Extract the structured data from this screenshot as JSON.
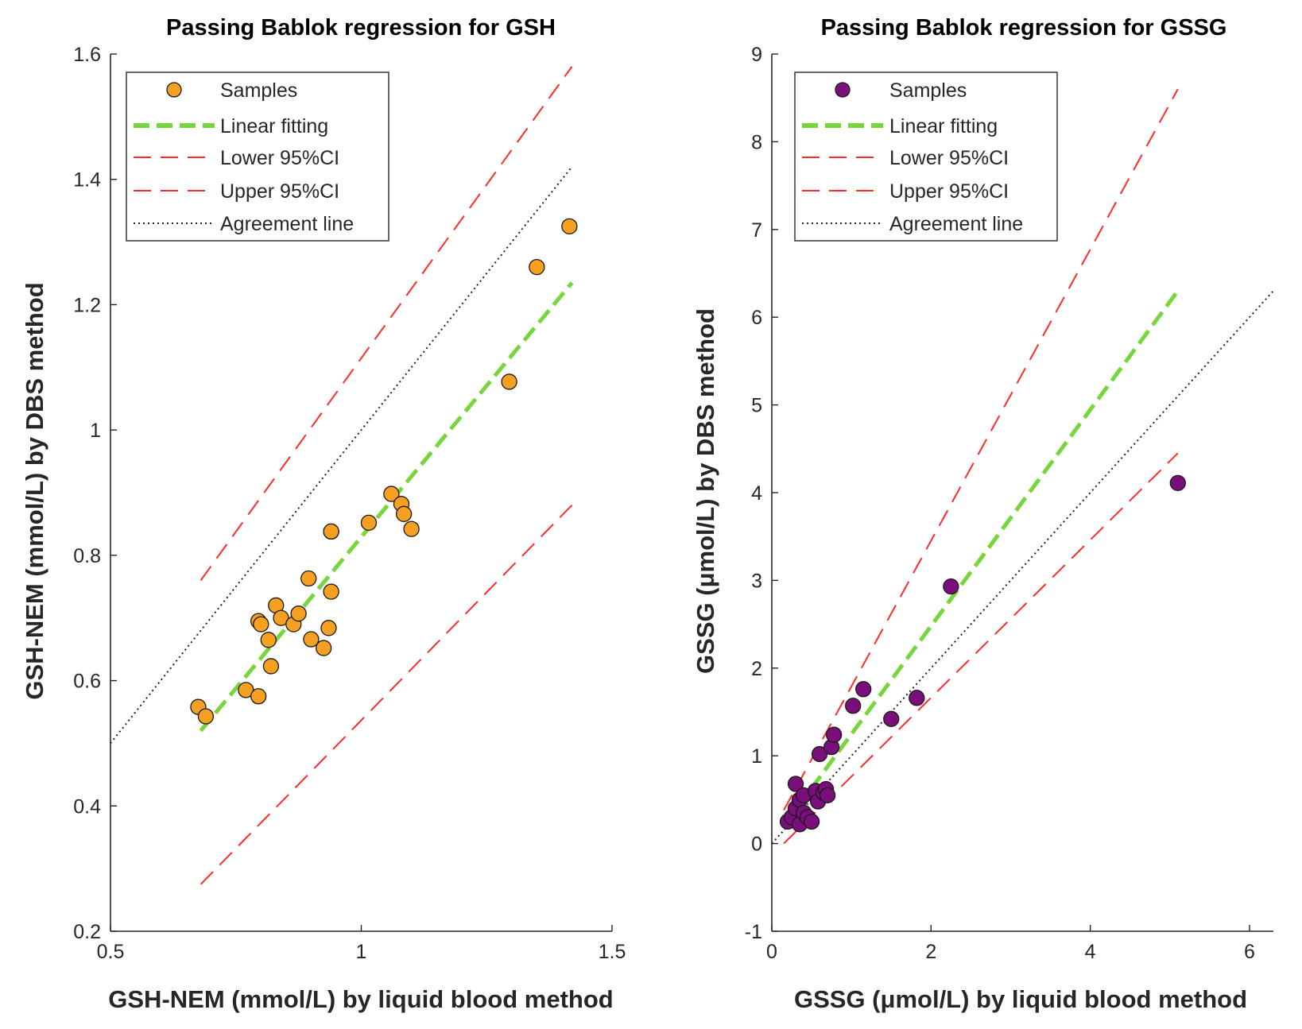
{
  "chart_data": [
    {
      "type": "scatter",
      "title": "Passing Bablok regression for GSH",
      "xlabel": "GSH-NEM (mmol/L) by liquid blood method",
      "ylabel": "GSH-NEM (mmol/L) by DBS method",
      "xlim": [
        0.5,
        1.5
      ],
      "ylim": [
        0.2,
        1.6
      ],
      "xticks": [
        0.5,
        1,
        1.5
      ],
      "xtick_labels": [
        "0.5",
        "1",
        "1.5"
      ],
      "yticks": [
        0.2,
        0.4,
        0.6,
        0.8,
        1.0,
        1.2,
        1.4,
        1.6
      ],
      "ytick_labels": [
        "0.2",
        "0.4",
        "0.6",
        "0.8",
        "1",
        "1.2",
        "1.4",
        "1.6"
      ],
      "marker_color": "#f5a021",
      "legend": [
        "Samples",
        "Linear fitting",
        "Lower 95%CI",
        "Upper 95%CI",
        "Agreement line"
      ],
      "samples": {
        "x": [
          0.675,
          0.69,
          0.77,
          0.795,
          0.795,
          0.8,
          0.815,
          0.82,
          0.83,
          0.84,
          0.865,
          0.875,
          0.895,
          0.9,
          0.925,
          0.935,
          0.94,
          0.94,
          0.94,
          1.015,
          1.06,
          1.08,
          1.085,
          1.1,
          1.295,
          1.35,
          1.415
        ],
        "y": [
          0.558,
          0.543,
          0.585,
          0.695,
          0.575,
          0.69,
          0.665,
          0.623,
          0.72,
          0.7,
          0.69,
          0.707,
          0.763,
          0.666,
          0.652,
          0.684,
          0.742,
          0.838,
          0.838,
          0.852,
          0.898,
          0.882,
          0.866,
          0.842,
          1.077,
          1.26,
          1.325
        ]
      },
      "linear_fit": {
        "x": [
          0.68,
          1.42
        ],
        "y": [
          0.52,
          1.235
        ]
      },
      "lower_ci": {
        "x": [
          0.68,
          1.42
        ],
        "y": [
          0.275,
          0.88
        ]
      },
      "upper_ci": {
        "x": [
          0.68,
          1.42
        ],
        "y": [
          0.76,
          1.58
        ]
      },
      "agreement_line": {
        "x": [
          0.5,
          1.42
        ],
        "y": [
          0.5,
          1.42
        ]
      }
    },
    {
      "type": "scatter",
      "title": "Passing Bablok regression for GSSG",
      "xlabel": "GSSG (μmol/L) by liquid blood method",
      "ylabel": "GSSG (μmol/L) by DBS method",
      "xlim": [
        0,
        6.3
      ],
      "ylim": [
        -1,
        9
      ],
      "xticks": [
        0,
        2,
        4,
        6
      ],
      "xtick_labels": [
        "0",
        "2",
        "4",
        "6"
      ],
      "yticks": [
        -1,
        0,
        1,
        2,
        3,
        4,
        5,
        6,
        7,
        8,
        9
      ],
      "ytick_labels": [
        "-1",
        "0",
        "1",
        "2",
        "3",
        "4",
        "5",
        "6",
        "7",
        "8",
        "9"
      ],
      "marker_color": "#7a0e7a",
      "legend": [
        "Samples",
        "Linear fitting",
        "Lower 95%CI",
        "Upper 95%CI",
        "Agreement line"
      ],
      "samples": {
        "x": [
          0.2,
          0.25,
          0.3,
          0.3,
          0.35,
          0.35,
          0.4,
          0.4,
          0.45,
          0.5,
          0.55,
          0.58,
          0.6,
          0.65,
          0.68,
          0.7,
          0.75,
          0.78,
          1.02,
          1.15,
          1.5,
          1.82,
          2.25,
          5.1
        ],
        "y": [
          0.25,
          0.3,
          0.68,
          0.4,
          0.22,
          0.5,
          0.35,
          0.55,
          0.3,
          0.25,
          0.6,
          0.48,
          1.02,
          0.58,
          0.62,
          0.55,
          1.1,
          1.24,
          1.57,
          1.76,
          1.42,
          1.66,
          2.93,
          4.11
        ]
      },
      "linear_fit": {
        "x": [
          0.15,
          5.1
        ],
        "y": [
          0.2,
          6.3
        ]
      },
      "lower_ci": {
        "x": [
          0.15,
          5.1
        ],
        "y": [
          0.0,
          4.45
        ]
      },
      "upper_ci": {
        "x": [
          0.15,
          5.1
        ],
        "y": [
          0.38,
          8.6
        ]
      },
      "agreement_line": {
        "x": [
          0.0,
          6.3
        ],
        "y": [
          0.0,
          6.3
        ]
      }
    }
  ]
}
